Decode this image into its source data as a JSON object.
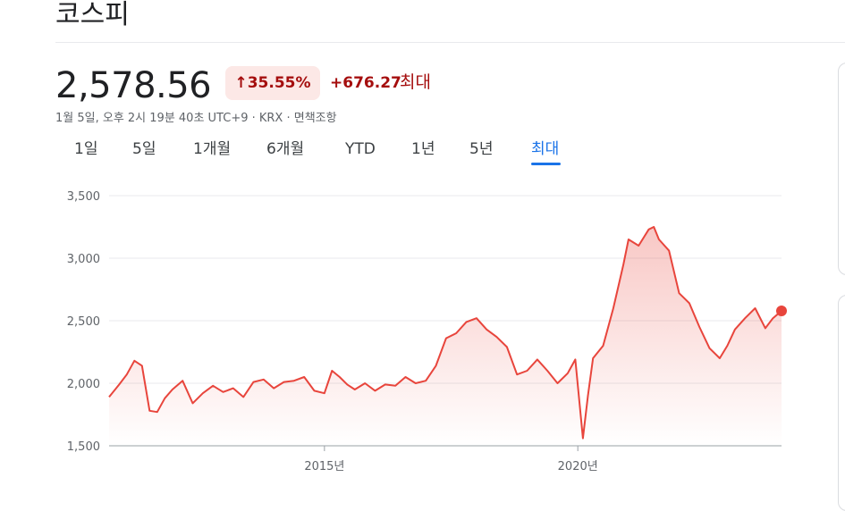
{
  "header": {
    "title": "코스피"
  },
  "quote": {
    "price": "2,578.56",
    "change_pct": "35.55%",
    "change_abs": "+676.27",
    "period_label": "최대",
    "meta": "1월 5일, 오후 2시 19분 40초 UTC+9 · KRX · 면책조항"
  },
  "tabs": [
    {
      "label": "1일",
      "active": false
    },
    {
      "label": "5일",
      "active": false
    },
    {
      "label": "1개월",
      "active": false
    },
    {
      "label": "6개월",
      "active": false
    },
    {
      "label": "YTD",
      "active": false
    },
    {
      "label": "1년",
      "active": false
    },
    {
      "label": "5년",
      "active": false
    },
    {
      "label": "최대",
      "active": true
    }
  ],
  "colors": {
    "line": "#e8453c",
    "accent_tab": "#1a73e8",
    "negative_text": "#a50e0e"
  },
  "icons": {
    "change": "arrow-up-icon"
  },
  "chart_data": {
    "type": "area",
    "x_tick_labels": [
      "2015년",
      "2020년"
    ],
    "x_ticks": [
      2015.0,
      2020.0
    ],
    "y_tick_labels": [
      "3,500",
      "3,000",
      "2,500",
      "2,000",
      "1,500"
    ],
    "ylim": [
      1500,
      3500
    ],
    "yticks": [
      1500,
      2000,
      2500,
      3000,
      3500
    ],
    "xlim": [
      2010.75,
      2024.02
    ],
    "grid": true,
    "x": [
      2010.75,
      2010.95,
      2011.1,
      2011.25,
      2011.4,
      2011.55,
      2011.7,
      2011.85,
      2012.0,
      2012.2,
      2012.4,
      2012.6,
      2012.8,
      2013.0,
      2013.2,
      2013.4,
      2013.6,
      2013.8,
      2014.0,
      2014.2,
      2014.4,
      2014.6,
      2014.8,
      2015.0,
      2015.15,
      2015.3,
      2015.45,
      2015.6,
      2015.8,
      2016.0,
      2016.2,
      2016.4,
      2016.6,
      2016.8,
      2017.0,
      2017.2,
      2017.4,
      2017.6,
      2017.8,
      2018.0,
      2018.2,
      2018.4,
      2018.6,
      2018.8,
      2019.0,
      2019.2,
      2019.4,
      2019.6,
      2019.8,
      2019.95,
      2020.1,
      2020.2,
      2020.3,
      2020.5,
      2020.7,
      2020.9,
      2021.0,
      2021.2,
      2021.4,
      2021.5,
      2021.6,
      2021.8,
      2022.0,
      2022.2,
      2022.4,
      2022.6,
      2022.8,
      2022.95,
      2023.1,
      2023.3,
      2023.5,
      2023.7,
      2023.85,
      2024.02
    ],
    "values": [
      1890,
      1990,
      2070,
      2180,
      2140,
      1780,
      1770,
      1880,
      1950,
      2020,
      1840,
      1920,
      1980,
      1930,
      1960,
      1890,
      2010,
      2030,
      1960,
      2010,
      2020,
      2050,
      1940,
      1920,
      2100,
      2050,
      1990,
      1950,
      2000,
      1940,
      1990,
      1980,
      2050,
      2000,
      2020,
      2140,
      2360,
      2400,
      2490,
      2520,
      2430,
      2370,
      2290,
      2070,
      2100,
      2190,
      2100,
      2000,
      2080,
      2190,
      1560,
      1900,
      2200,
      2300,
      2600,
      2950,
      3150,
      3100,
      3230,
      3250,
      3150,
      3060,
      2720,
      2640,
      2450,
      2280,
      2200,
      2300,
      2430,
      2520,
      2600,
      2440,
      2520,
      2578.56
    ],
    "last_point": {
      "x": 2024.02,
      "y": 2578.56
    }
  }
}
